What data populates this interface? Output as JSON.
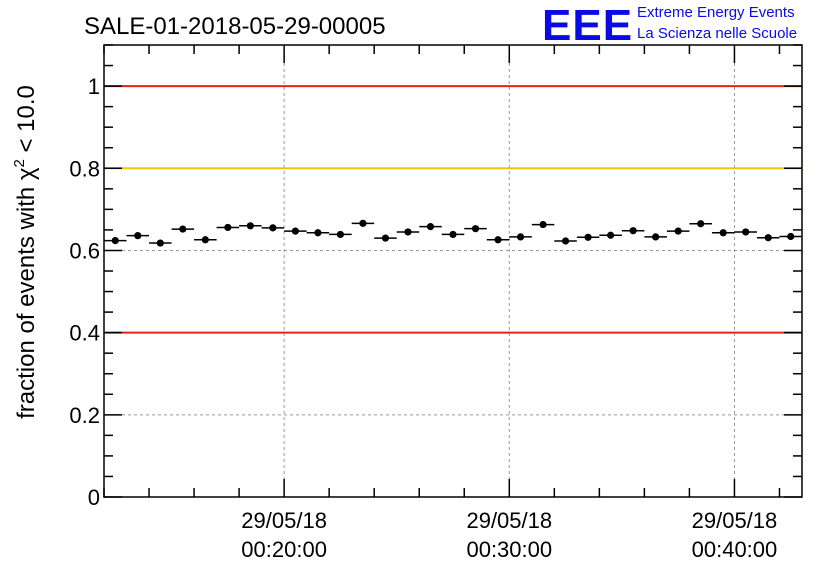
{
  "chart_data": {
    "type": "scatter",
    "title": "SALE-01-2018-05-29-00005",
    "ylabel_prefix": "fraction of events with",
    "ylabel_chi": "χ",
    "ylabel_sup": "2",
    "ylabel_suffix": "< 10.0",
    "ylim": [
      0,
      1.1
    ],
    "xlim_minutes": [
      12.0,
      43.0
    ],
    "x_ticks": [
      {
        "minute": 20,
        "date": "29/05/18",
        "time": "00:20:00"
      },
      {
        "minute": 30,
        "date": "29/05/18",
        "time": "00:30:00"
      },
      {
        "minute": 40,
        "date": "29/05/18",
        "time": "00:40:00"
      }
    ],
    "y_ticks": [
      {
        "value": 0,
        "label": "0"
      },
      {
        "value": 0.2,
        "label": "0.2"
      },
      {
        "value": 0.4,
        "label": "0.4"
      },
      {
        "value": 0.6,
        "label": "0.6"
      },
      {
        "value": 0.8,
        "label": "0.8"
      },
      {
        "value": 1.0,
        "label": "1"
      }
    ],
    "reference_lines": [
      {
        "value": 1.0,
        "color": "#e8231f"
      },
      {
        "value": 0.8,
        "color": "#f5c400"
      },
      {
        "value": 0.4,
        "color": "#e8231f"
      }
    ],
    "bin_width_minutes": 1.0,
    "points": [
      {
        "x": 12.5,
        "y": 0.624
      },
      {
        "x": 13.5,
        "y": 0.636
      },
      {
        "x": 14.5,
        "y": 0.618
      },
      {
        "x": 15.5,
        "y": 0.652
      },
      {
        "x": 16.5,
        "y": 0.626
      },
      {
        "x": 17.5,
        "y": 0.656
      },
      {
        "x": 18.5,
        "y": 0.66
      },
      {
        "x": 19.5,
        "y": 0.655
      },
      {
        "x": 20.5,
        "y": 0.647
      },
      {
        "x": 21.5,
        "y": 0.643
      },
      {
        "x": 22.5,
        "y": 0.639
      },
      {
        "x": 23.5,
        "y": 0.666
      },
      {
        "x": 24.5,
        "y": 0.63
      },
      {
        "x": 25.5,
        "y": 0.645
      },
      {
        "x": 26.5,
        "y": 0.658
      },
      {
        "x": 27.5,
        "y": 0.639
      },
      {
        "x": 28.5,
        "y": 0.653
      },
      {
        "x": 29.5,
        "y": 0.626
      },
      {
        "x": 30.5,
        "y": 0.633
      },
      {
        "x": 31.5,
        "y": 0.663
      },
      {
        "x": 32.5,
        "y": 0.623
      },
      {
        "x": 33.5,
        "y": 0.632
      },
      {
        "x": 34.5,
        "y": 0.637
      },
      {
        "x": 35.5,
        "y": 0.648
      },
      {
        "x": 36.5,
        "y": 0.633
      },
      {
        "x": 37.5,
        "y": 0.647
      },
      {
        "x": 38.5,
        "y": 0.665
      },
      {
        "x": 39.5,
        "y": 0.643
      },
      {
        "x": 40.5,
        "y": 0.645
      },
      {
        "x": 41.5,
        "y": 0.631
      },
      {
        "x": 42.5,
        "y": 0.634
      }
    ],
    "error_y": 0.008
  },
  "logo": {
    "mark": "EEE",
    "line1": "Extreme Energy Events",
    "line2": "La Scienza nelle Scuole",
    "color": "#0a0ae6"
  }
}
